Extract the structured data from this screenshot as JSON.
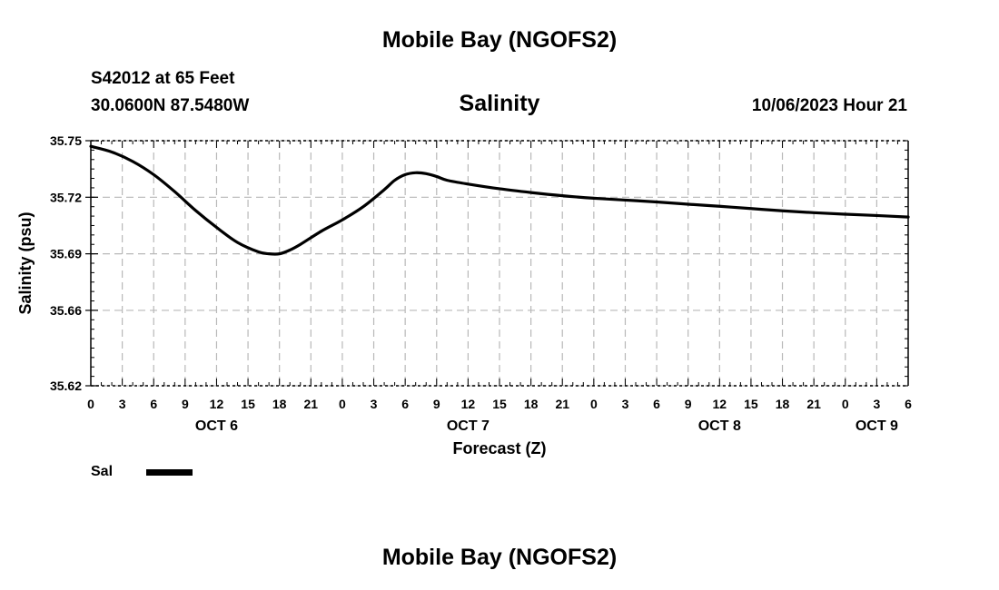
{
  "header": {
    "title": "Mobile Bay (NGOFS2)",
    "station": "S42012 at 65 Feet",
    "coords": "30.0600N  87.5480W",
    "subtitle": "Salinity",
    "datetime": "10/06/2023 Hour 21",
    "footer_title": "Mobile Bay (NGOFS2)"
  },
  "legend": {
    "label": "Sal",
    "color": "#000000"
  },
  "chart_data": {
    "type": "line",
    "title": "Salinity",
    "xlabel": "Forecast (Z)",
    "ylabel": "Salinity (psu)",
    "x_unit": "hours since Oct 6 00Z",
    "xlim": [
      0,
      78
    ],
    "ylim": [
      35.62,
      35.75
    ],
    "ytick_values": [
      35.62,
      35.66,
      35.69,
      35.72,
      35.75
    ],
    "ytick_labels": [
      "35.62",
      "35.66",
      "35.69",
      "35.72",
      "35.75"
    ],
    "xtick_values": [
      0,
      3,
      6,
      9,
      12,
      15,
      18,
      21,
      24,
      27,
      30,
      33,
      36,
      39,
      42,
      45,
      48,
      51,
      54,
      57,
      60,
      63,
      66,
      69,
      72,
      75,
      78
    ],
    "xtick_labels": [
      "0",
      "3",
      "6",
      "9",
      "12",
      "15",
      "18",
      "21",
      "0",
      "3",
      "6",
      "9",
      "12",
      "15",
      "18",
      "21",
      "0",
      "3",
      "6",
      "9",
      "12",
      "15",
      "18",
      "21",
      "0",
      "3",
      "6"
    ],
    "day_labels": [
      {
        "x": 12,
        "label": "OCT 6"
      },
      {
        "x": 36,
        "label": "OCT 7"
      },
      {
        "x": 60,
        "label": "OCT 8"
      },
      {
        "x": 75,
        "label": "OCT 9"
      }
    ],
    "grid": true,
    "series": [
      {
        "name": "Sal",
        "color": "#000000",
        "x": [
          0,
          2,
          4,
          6,
          8,
          10,
          12,
          14,
          16,
          17,
          18,
          19,
          20,
          22,
          24,
          26,
          28,
          29,
          30,
          31,
          32,
          33,
          34,
          36,
          39,
          42,
          45,
          48,
          51,
          54,
          57,
          60,
          63,
          66,
          69,
          72,
          75,
          78
        ],
        "values": [
          35.747,
          35.744,
          35.739,
          35.732,
          35.723,
          35.713,
          35.704,
          35.696,
          35.691,
          35.69,
          35.69,
          35.692,
          35.695,
          35.702,
          35.708,
          35.715,
          35.724,
          35.729,
          35.732,
          35.733,
          35.7325,
          35.731,
          35.729,
          35.727,
          35.7245,
          35.7225,
          35.7208,
          35.7195,
          35.7185,
          35.7175,
          35.7163,
          35.7152,
          35.714,
          35.7128,
          35.7118,
          35.711,
          35.7103,
          35.7095
        ]
      }
    ]
  }
}
